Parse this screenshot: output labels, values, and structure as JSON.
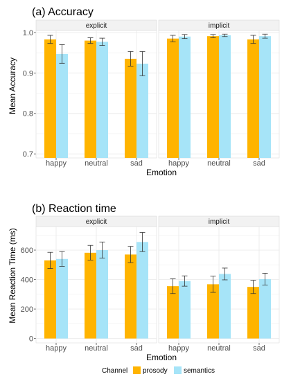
{
  "colors": {
    "prosody": "#FFB400",
    "semantics": "#A6E4F8",
    "panel_bg": "#FFFFFF",
    "strip_bg": "#F2F2F2",
    "grid": "#EBEBEB",
    "error_bar": "#333333"
  },
  "legend": {
    "title": "Channel",
    "items": [
      "prosody",
      "semantics"
    ]
  },
  "chart_data": [
    {
      "type": "bar",
      "title": "(a) Accuracy",
      "xlabel": "Emotion",
      "ylabel": "Mean Accuracy",
      "ylim": [
        0.69,
        1.005
      ],
      "yticks": [
        0.7,
        0.8,
        0.9,
        1.0
      ],
      "ytick_labels": [
        "0.7",
        "0.8",
        "0.9",
        "1.0"
      ],
      "grid": true,
      "legend_position": "bottom",
      "facets": [
        {
          "label": "explicit",
          "categories": [
            "happy",
            "neutral",
            "sad"
          ],
          "series": [
            {
              "name": "prosody",
              "values": [
                0.983,
                0.98,
                0.935
              ],
              "error": [
                0.01,
                0.007,
                0.018
              ]
            },
            {
              "name": "semantics",
              "values": [
                0.947,
                0.977,
                0.923
              ],
              "error": [
                0.023,
                0.009,
                0.03
              ]
            }
          ]
        },
        {
          "label": "implicit",
          "categories": [
            "happy",
            "neutral",
            "sad"
          ],
          "series": [
            {
              "name": "prosody",
              "values": [
                0.985,
                0.991,
                0.983
              ],
              "error": [
                0.008,
                0.004,
                0.01
              ]
            },
            {
              "name": "semantics",
              "values": [
                0.99,
                0.993,
                0.991
              ],
              "error": [
                0.005,
                0.003,
                0.005
              ]
            }
          ]
        }
      ]
    },
    {
      "type": "bar",
      "title": "(b) Reaction time",
      "xlabel": "Emotion",
      "ylabel": "Mean Reaction Time (ms)",
      "ylim": [
        -30,
        760
      ],
      "yticks": [
        0,
        200,
        400,
        600
      ],
      "ytick_labels": [
        "0",
        "200",
        "400",
        "600"
      ],
      "grid": true,
      "legend_position": "bottom",
      "facets": [
        {
          "label": "explicit",
          "categories": [
            "happy",
            "neutral",
            "sad"
          ],
          "series": [
            {
              "name": "prosody",
              "values": [
                530,
                582,
                570
              ],
              "error": [
                55,
                50,
                55
              ]
            },
            {
              "name": "semantics",
              "values": [
                540,
                600,
                655
              ],
              "error": [
                50,
                55,
                65
              ]
            }
          ]
        },
        {
          "label": "implicit",
          "categories": [
            "happy",
            "neutral",
            "sad"
          ],
          "series": [
            {
              "name": "prosody",
              "values": [
                355,
                368,
                350
              ],
              "error": [
                50,
                55,
                45
              ]
            },
            {
              "name": "semantics",
              "values": [
                390,
                438,
                403
              ],
              "error": [
                35,
                40,
                40
              ]
            }
          ]
        }
      ]
    }
  ]
}
